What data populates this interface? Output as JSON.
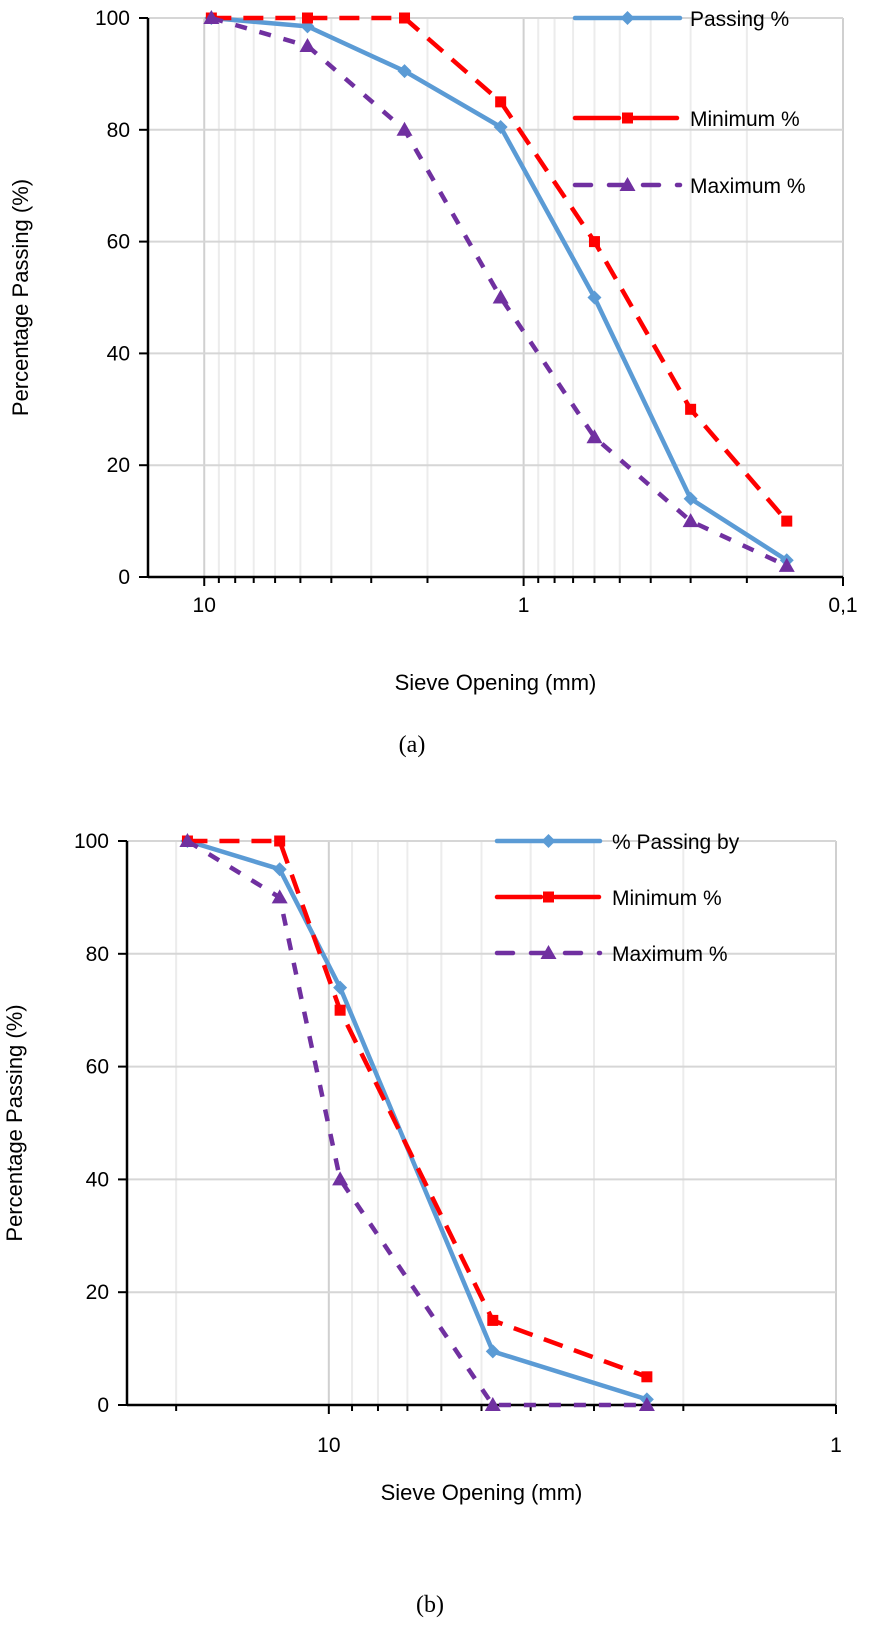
{
  "chart_data": [
    {
      "type": "line",
      "caption": "(a)",
      "xlabel": "Sieve Opening (mm)",
      "ylabel": "Percentage Passing (%)",
      "xscale": "log",
      "x_reversed": true,
      "xlim": [
        15,
        0.1
      ],
      "ylim": [
        0,
        100
      ],
      "xticks": [
        10,
        1,
        0.1
      ],
      "xtick_labels": [
        "10",
        "1",
        "0,1"
      ],
      "yticks": [
        0,
        20,
        40,
        60,
        80,
        100
      ],
      "ytick_labels": [
        "0",
        "20",
        "40",
        "60",
        "80",
        "100"
      ],
      "grid": true,
      "legend": "top-right",
      "x": [
        9.5,
        4.75,
        2.36,
        1.18,
        0.6,
        0.3,
        0.15
      ],
      "series": [
        {
          "name": "Passing %",
          "values": [
            100,
            98.5,
            90.5,
            80.5,
            50,
            14,
            3
          ],
          "color": "#5B9BD5",
          "marker": "diamond",
          "dash": "solid"
        },
        {
          "name": "Minimum %",
          "values": [
            100,
            100,
            100,
            85,
            60,
            30,
            10
          ],
          "color": "#FF0000",
          "marker": "square",
          "dash": "long-dash"
        },
        {
          "name": "Maximum %",
          "values": [
            100,
            95,
            80,
            50,
            25,
            10,
            2
          ],
          "color": "#7030A0",
          "marker": "triangle",
          "dash": "dash"
        }
      ]
    },
    {
      "type": "line",
      "caption": "(b)",
      "xlabel": "Sieve Opening (mm)",
      "ylabel": "Percentage Passing (%)",
      "xscale": "log",
      "x_reversed": true,
      "xlim": [
        25,
        1
      ],
      "ylim": [
        0,
        100
      ],
      "xticks": [
        10,
        1
      ],
      "xtick_labels": [
        "10",
        "1"
      ],
      "yticks": [
        0,
        20,
        40,
        60,
        80,
        100
      ],
      "ytick_labels": [
        "0",
        "20",
        "40",
        "60",
        "80",
        "100"
      ],
      "grid": true,
      "legend": "top-right",
      "x": [
        19,
        12.5,
        9.5,
        4.75,
        2.36
      ],
      "series": [
        {
          "name": "% Passing by",
          "values": [
            100,
            95,
            74,
            9.5,
            1
          ],
          "color": "#5B9BD5",
          "marker": "diamond",
          "dash": "solid"
        },
        {
          "name": "Minimum %",
          "values": [
            100,
            100,
            70,
            15,
            5
          ],
          "color": "#FF0000",
          "marker": "square",
          "dash": "long-dash"
        },
        {
          "name": "Maximum %",
          "values": [
            100,
            90,
            40,
            0,
            0
          ],
          "color": "#7030A0",
          "marker": "triangle",
          "dash": "dash"
        }
      ]
    }
  ]
}
